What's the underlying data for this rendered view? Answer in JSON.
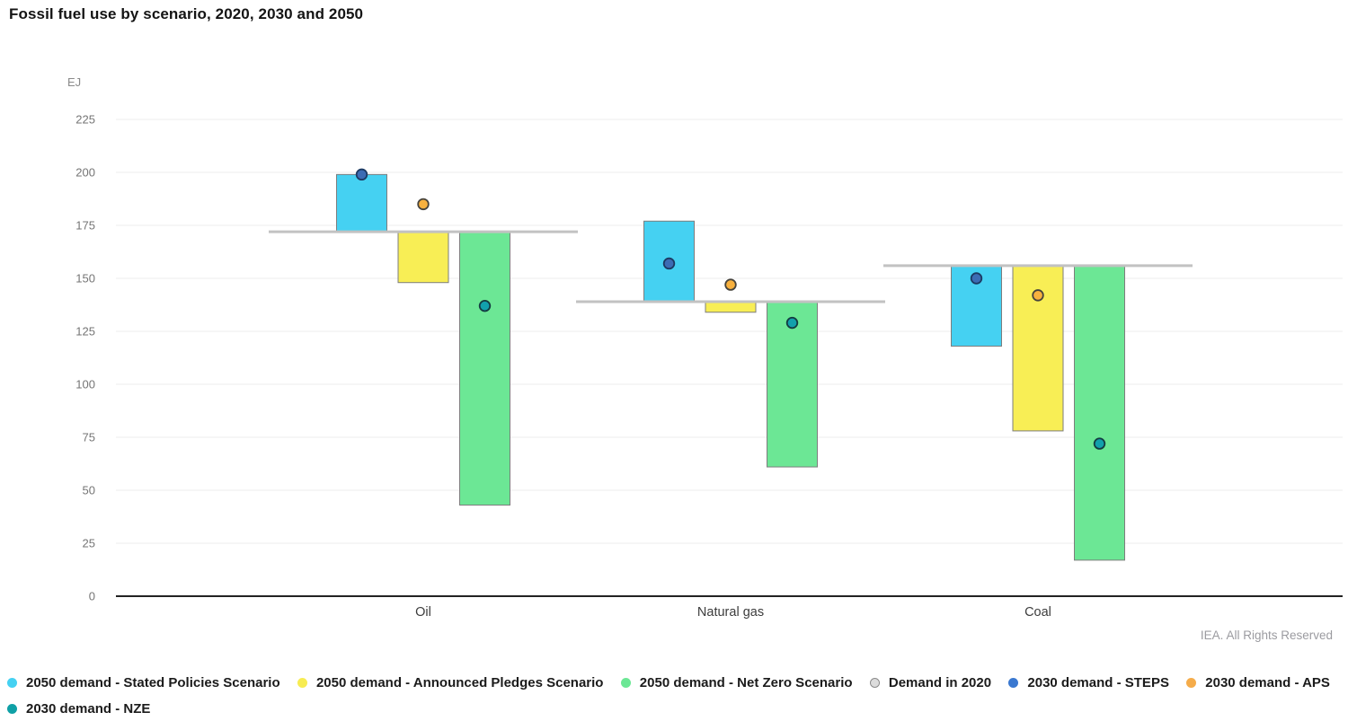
{
  "title": "Fossil fuel use by scenario, 2020, 2030 and 2050",
  "credit": "IEA. All Rights Reserved",
  "chart_data": {
    "type": "bar",
    "title": "Fossil fuel use by scenario, 2020, 2030 and 2050",
    "unit_label": "EJ",
    "ylabel": "EJ",
    "ylim": [
      0,
      225
    ],
    "ytick_step": 25,
    "grid": true,
    "legend_position": "bottom",
    "categories": [
      "Oil",
      "Natural gas",
      "Coal"
    ],
    "baseline": {
      "name": "Demand in 2020",
      "values": [
        172,
        139,
        156
      ],
      "color": "#C2C2C2"
    },
    "bar_series": [
      {
        "name": "2050 demand - Stated Policies Scenario",
        "color": "#45D1F2",
        "stroke": "#7D7D7D",
        "values": [
          199,
          177,
          118
        ]
      },
      {
        "name": "2050 demand - Announced Pledges Scenario",
        "color": "#F8EE55",
        "stroke": "#7D7D7D",
        "values": [
          148,
          134,
          78
        ]
      },
      {
        "name": "2050 demand - Net Zero Scenario",
        "color": "#6CE795",
        "stroke": "#7D7D7D",
        "values": [
          43,
          61,
          17
        ]
      }
    ],
    "dot_series": [
      {
        "name": "2030 demand - STEPS",
        "color": "#3C6CB4",
        "stroke": "#1C3A63",
        "values": [
          199,
          157,
          150
        ],
        "bar_index": 0
      },
      {
        "name": "2030 demand - APS",
        "color": "#F8B13E",
        "stroke": "#46433C",
        "values": [
          185,
          147,
          142
        ],
        "bar_index": 1
      },
      {
        "name": "2030 demand - NZE",
        "color": "#12A0AC",
        "stroke": "#143C42",
        "values": [
          137,
          129,
          72
        ],
        "bar_index": 2
      }
    ]
  },
  "legend": {
    "items": [
      {
        "label": "2050 demand - Stated Policies Scenario",
        "marker_color": "#45D1F2",
        "marker_stroke": "none",
        "row": 1
      },
      {
        "label": "2050 demand - Announced Pledges Scenario",
        "marker_color": "#F7EC52",
        "marker_stroke": "none",
        "row": 1
      },
      {
        "label": "2050 demand - Net Zero Scenario",
        "marker_color": "#6CE795",
        "marker_stroke": "none",
        "row": 1
      },
      {
        "label": "Demand in 2020",
        "marker_color": "#DCDCDC",
        "marker_stroke": "#8A8A8A",
        "row": 1
      },
      {
        "label": "2030 demand - STEPS",
        "marker_color": "#3A78D0",
        "marker_stroke": "none",
        "row": 1
      },
      {
        "label": "2030 demand - APS",
        "marker_color": "#F5AC4A",
        "marker_stroke": "none",
        "row": 1
      },
      {
        "label": "2030 demand - NZE",
        "marker_color": "#0FA0A6",
        "marker_stroke": "none",
        "row": 2
      }
    ]
  }
}
